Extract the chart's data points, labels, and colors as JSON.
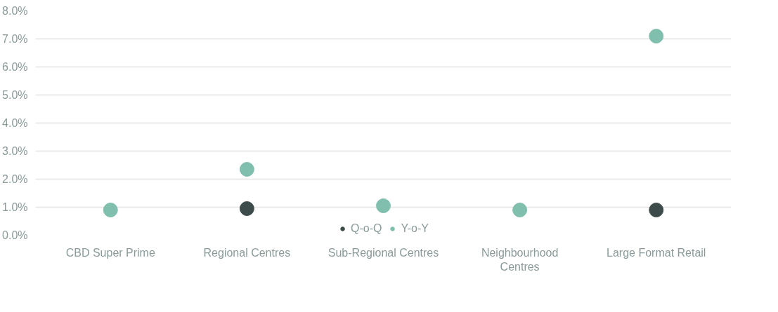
{
  "chart_data": {
    "type": "scatter",
    "categories": [
      "CBD Super Prime",
      "Regional Centres",
      "Sub-Regional Centres",
      "Neighbourhood\nCentres",
      "Large Format Retail"
    ],
    "series": [
      {
        "name": "Q-o-Q",
        "color": "#3d4b4b",
        "values": [
          null,
          0.95,
          null,
          null,
          0.9
        ]
      },
      {
        "name": "Y-o-Y",
        "color": "#80bfae",
        "values": [
          0.9,
          2.35,
          1.05,
          0.9,
          7.1
        ]
      }
    ],
    "ylim": [
      0,
      8
    ],
    "yticks": [
      {
        "value": 0,
        "label": "0.0%"
      },
      {
        "value": 1,
        "label": "1.0%"
      },
      {
        "value": 2,
        "label": "2.0%"
      },
      {
        "value": 3,
        "label": "3.0%"
      },
      {
        "value": 4,
        "label": "4.0%"
      },
      {
        "value": 5,
        "label": "5.0%"
      },
      {
        "value": 6,
        "label": "6.0%"
      },
      {
        "value": 7,
        "label": "7.0%"
      },
      {
        "value": 8,
        "label": "8.0%"
      }
    ],
    "grid": "y",
    "legend": "bottom",
    "marker": "circle"
  }
}
